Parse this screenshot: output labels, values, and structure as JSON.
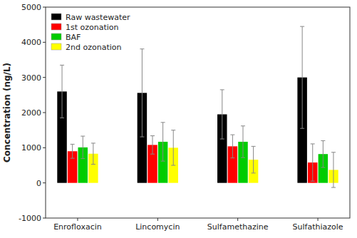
{
  "chart_data": {
    "type": "bar",
    "categories": [
      "Enrofloxacin",
      "Lincomycin",
      "Sulfamethazine",
      "Sulfathiazole"
    ],
    "series": [
      {
        "name": "Raw wastewater",
        "color": "#000000",
        "values": [
          2600,
          2560,
          1950,
          3000
        ],
        "errors": [
          750,
          1250,
          700,
          1450
        ]
      },
      {
        "name": "1st ozonation",
        "color": "#ff0000",
        "values": [
          900,
          1080,
          1040,
          580
        ],
        "errors": [
          200,
          260,
          330,
          530
        ]
      },
      {
        "name": "BAF",
        "color": "#00cc00",
        "values": [
          1010,
          1170,
          1170,
          820
        ],
        "errors": [
          320,
          550,
          450,
          380
        ]
      },
      {
        "name": "2nd ozonation",
        "color": "#ffff00",
        "values": [
          830,
          1000,
          660,
          370
        ],
        "errors": [
          300,
          500,
          380,
          500
        ]
      }
    ],
    "ylabel": "Concentration (ng/L)",
    "ylim": [
      -1000,
      5000
    ],
    "yticks": [
      -1000,
      0,
      1000,
      2000,
      3000,
      4000,
      5000
    ],
    "legend": "upper left",
    "grid": false
  }
}
